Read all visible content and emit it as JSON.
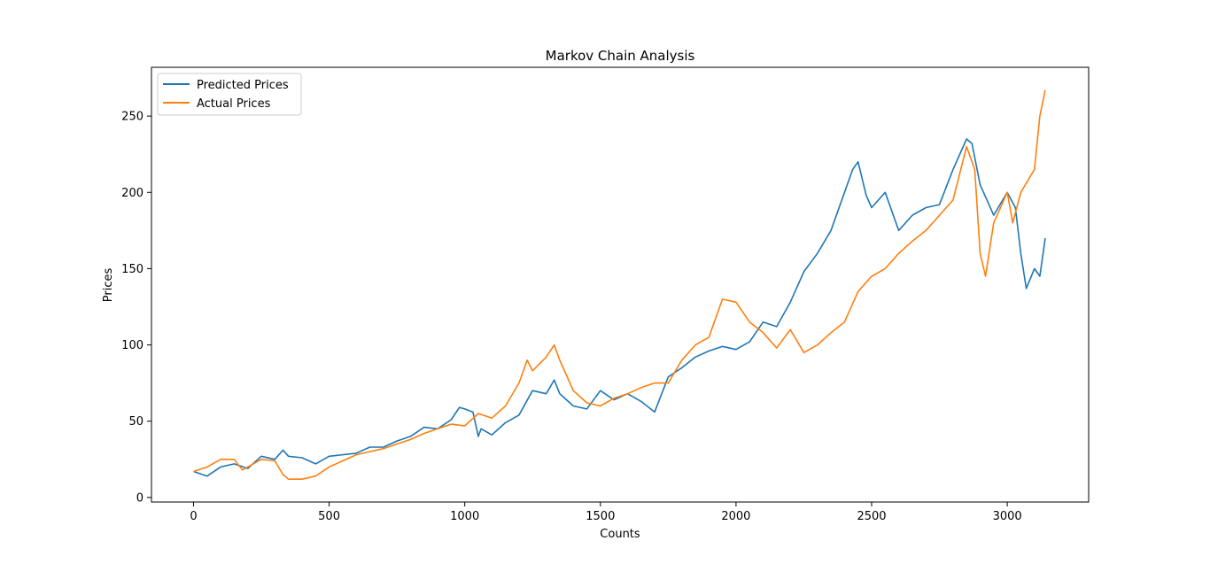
{
  "chart_data": {
    "type": "line",
    "title": "Markov Chain Analysis",
    "xlabel": "Counts",
    "ylabel": "Prices",
    "xlim": [
      -155,
      3300
    ],
    "ylim": [
      -3,
      282
    ],
    "xticks": [
      0,
      500,
      1000,
      1500,
      2000,
      2500,
      3000
    ],
    "yticks": [
      0,
      50,
      100,
      150,
      200,
      250
    ],
    "grid": false,
    "legend_position": "upper-left",
    "series": [
      {
        "name": "Predicted Prices",
        "color": "#1f77b4",
        "x": [
          0,
          50,
          100,
          150,
          200,
          250,
          300,
          330,
          350,
          400,
          450,
          500,
          550,
          600,
          650,
          700,
          750,
          800,
          850,
          900,
          950,
          980,
          1000,
          1030,
          1050,
          1060,
          1100,
          1150,
          1200,
          1250,
          1300,
          1330,
          1350,
          1400,
          1450,
          1500,
          1550,
          1600,
          1650,
          1700,
          1750,
          1800,
          1850,
          1900,
          1950,
          2000,
          2050,
          2100,
          2150,
          2200,
          2250,
          2300,
          2350,
          2400,
          2430,
          2450,
          2480,
          2500,
          2550,
          2600,
          2650,
          2700,
          2750,
          2800,
          2850,
          2870,
          2900,
          2950,
          3000,
          3030,
          3050,
          3070,
          3100,
          3120,
          3140
        ],
        "y": [
          17,
          14,
          20,
          22,
          19,
          27,
          25,
          31,
          27,
          26,
          22,
          27,
          28,
          29,
          33,
          33,
          37,
          40,
          46,
          45,
          51,
          59,
          58,
          56,
          40,
          45,
          41,
          49,
          54,
          70,
          68,
          77,
          68,
          60,
          58,
          70,
          64,
          68,
          63,
          56,
          79,
          85,
          92,
          96,
          99,
          97,
          102,
          115,
          112,
          128,
          148,
          160,
          175,
          200,
          215,
          220,
          198,
          190,
          200,
          175,
          185,
          190,
          192,
          215,
          235,
          232,
          205,
          185,
          200,
          190,
          160,
          137,
          150,
          145,
          170
        ]
      },
      {
        "name": "Actual Prices",
        "color": "#ff7f0e",
        "x": [
          0,
          50,
          100,
          150,
          180,
          200,
          250,
          300,
          330,
          350,
          400,
          450,
          500,
          550,
          600,
          650,
          700,
          750,
          800,
          850,
          900,
          950,
          1000,
          1050,
          1100,
          1150,
          1200,
          1230,
          1250,
          1300,
          1330,
          1350,
          1400,
          1450,
          1500,
          1550,
          1600,
          1650,
          1700,
          1750,
          1800,
          1850,
          1900,
          1950,
          2000,
          2050,
          2100,
          2150,
          2200,
          2250,
          2300,
          2350,
          2400,
          2450,
          2500,
          2550,
          2600,
          2650,
          2700,
          2750,
          2800,
          2850,
          2880,
          2900,
          2920,
          2950,
          3000,
          3020,
          3050,
          3100,
          3120,
          3140
        ],
        "y": [
          17,
          20,
          25,
          25,
          18,
          20,
          25,
          24,
          15,
          12,
          12,
          14,
          20,
          24,
          28,
          30,
          32,
          35,
          38,
          42,
          45,
          48,
          47,
          55,
          52,
          60,
          75,
          90,
          83,
          92,
          100,
          90,
          70,
          62,
          60,
          65,
          68,
          72,
          75,
          75,
          90,
          100,
          105,
          130,
          128,
          115,
          108,
          98,
          110,
          95,
          100,
          108,
          115,
          135,
          145,
          150,
          160,
          168,
          175,
          185,
          195,
          230,
          215,
          160,
          145,
          180,
          200,
          180,
          200,
          215,
          250,
          267
        ]
      }
    ]
  }
}
